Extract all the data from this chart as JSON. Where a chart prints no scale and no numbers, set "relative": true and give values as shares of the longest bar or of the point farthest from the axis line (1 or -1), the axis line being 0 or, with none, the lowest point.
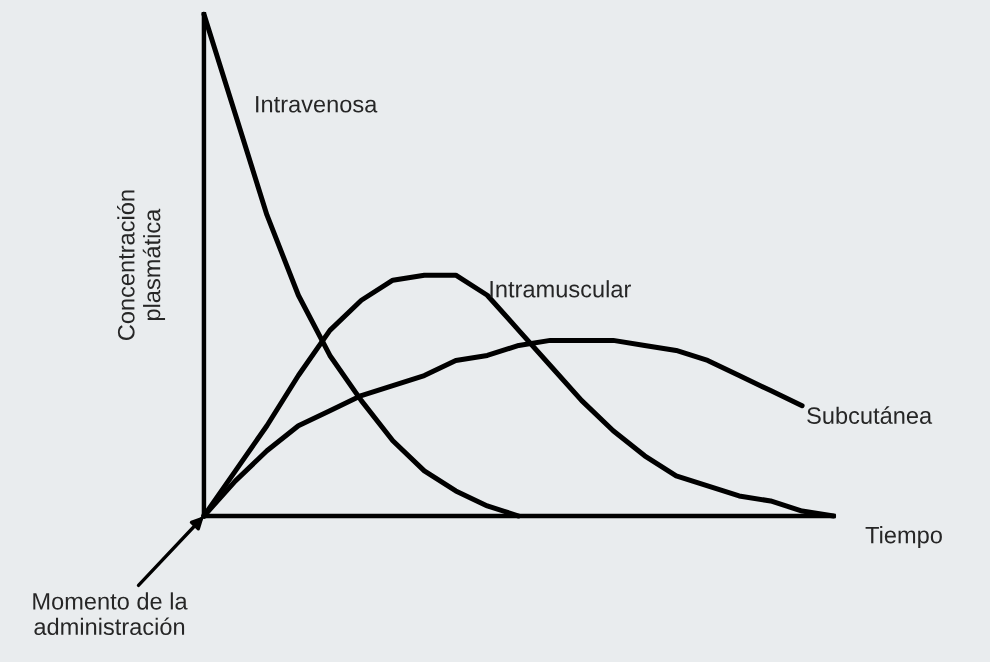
{
  "chart_data": {
    "type": "line",
    "relative": true,
    "ylabel": "Concentración plasmática",
    "xlabel": "Tiempo",
    "marker": "none",
    "line_style": "solid",
    "categories": [
      null,
      null,
      null,
      null,
      null,
      null,
      null,
      null,
      null,
      null,
      null,
      null,
      null,
      null,
      null,
      null,
      null,
      null,
      null,
      null,
      null
    ],
    "annotations": [
      "Momento de la administración"
    ],
    "series": [
      {
        "name": "Intravenosa",
        "color": "#000000",
        "values": [
          1.0,
          0.8,
          0.6,
          0.44,
          0.32,
          0.23,
          0.15,
          0.09,
          0.05,
          0.02,
          0,
          null,
          null,
          null,
          null,
          null,
          null,
          null,
          null,
          null,
          null
        ]
      },
      {
        "name": "Intramuscular",
        "color": "#000000",
        "values": [
          0,
          0.09,
          0.18,
          0.28,
          0.37,
          0.43,
          0.47,
          0.48,
          0.48,
          0.44,
          0.37,
          0.3,
          0.23,
          0.17,
          0.12,
          0.08,
          0.06,
          0.04,
          0.03,
          0.01,
          0
        ]
      },
      {
        "name": "Subcutánea",
        "color": "#000000",
        "values": [
          0,
          0.07,
          0.13,
          0.18,
          0.21,
          0.24,
          0.26,
          0.28,
          0.31,
          0.32,
          0.34,
          0.35,
          0.35,
          0.35,
          0.34,
          0.33,
          0.31,
          0.28,
          0.25,
          0.22,
          null
        ]
      }
    ]
  }
}
